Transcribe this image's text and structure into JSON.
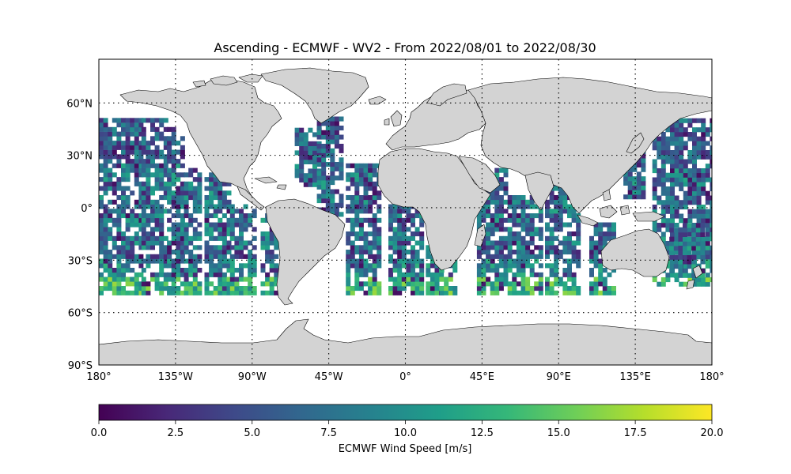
{
  "title": "Ascending - ECMWF - WV2 - From 2022/08/01 to 2022/08/30",
  "map": {
    "projection": "plate-carree",
    "lon_range": [
      -180,
      180
    ],
    "lat_range": [
      -90,
      90
    ],
    "lat_ticks": [
      {
        "value": 60,
        "label": "60°N"
      },
      {
        "value": 30,
        "label": "30°N"
      },
      {
        "value": 0,
        "label": "0°"
      },
      {
        "value": -30,
        "label": "30°S"
      },
      {
        "value": -60,
        "label": "60°S"
      },
      {
        "value": -90,
        "label": "90°S"
      }
    ],
    "lon_ticks": [
      {
        "value": -180,
        "label": "180°"
      },
      {
        "value": -135,
        "label": "135°W"
      },
      {
        "value": -90,
        "label": "90°W"
      },
      {
        "value": -45,
        "label": "45°W"
      },
      {
        "value": 0,
        "label": "0°"
      },
      {
        "value": 45,
        "label": "45°E"
      },
      {
        "value": 90,
        "label": "90°E"
      },
      {
        "value": 135,
        "label": "135°E"
      },
      {
        "value": 180,
        "label": "180°"
      }
    ],
    "gridlines": true,
    "land_color": "#d3d3d3",
    "coastline_color": "#000000"
  },
  "chart_data": {
    "type": "heatmap",
    "colormap": "viridis",
    "data_coverage_lat": [
      -50,
      50
    ],
    "swaths": [
      {
        "lon": [
          -180,
          -155
        ],
        "lat": [
          -50,
          50
        ]
      },
      {
        "lon": [
          -155,
          -142
        ],
        "lat": [
          -50,
          50
        ]
      },
      {
        "lon": [
          -140,
          -130
        ],
        "lat": [
          -50,
          45
        ]
      },
      {
        "lon": [
          -130,
          -120
        ],
        "lat": [
          -50,
          22
        ]
      },
      {
        "lon": [
          -118,
          -105
        ],
        "lat": [
          -50,
          18
        ]
      },
      {
        "lon": [
          -103,
          -88
        ],
        "lat": [
          -50,
          0
        ]
      },
      {
        "lon": [
          -85,
          -75
        ],
        "lat": [
          -50,
          -5
        ]
      },
      {
        "lon": [
          -65,
          -50
        ],
        "lat": [
          12,
          45
        ]
      },
      {
        "lon": [
          -52,
          -38
        ],
        "lat": [
          -5,
          50
        ]
      },
      {
        "lon": [
          -35,
          -15
        ],
        "lat": [
          -50,
          25
        ]
      },
      {
        "lon": [
          -10,
          10
        ],
        "lat": [
          -50,
          0
        ]
      },
      {
        "lon": [
          12,
          20
        ],
        "lat": [
          -50,
          -20
        ]
      },
      {
        "lon": [
          20,
          30
        ],
        "lat": [
          -50,
          -30
        ]
      },
      {
        "lon": [
          42,
          58
        ],
        "lat": [
          -50,
          22
        ]
      },
      {
        "lon": [
          60,
          80
        ],
        "lat": [
          -50,
          5
        ]
      },
      {
        "lon": [
          82,
          102
        ],
        "lat": [
          -50,
          20
        ]
      },
      {
        "lon": [
          108,
          122
        ],
        "lat": [
          -50,
          -10
        ]
      },
      {
        "lon": [
          128,
          140
        ],
        "lat": [
          5,
          40
        ]
      },
      {
        "lon": [
          145,
          180
        ],
        "lat": [
          -45,
          50
        ]
      },
      {
        "lon": [
          155,
          175
        ],
        "lat": [
          -40,
          -10
        ]
      }
    ],
    "high_speed_band": {
      "lat": [
        -50,
        -42
      ],
      "note_values_up_to": 17
    }
  },
  "colorbar": {
    "label": "ECMWF Wind Speed [m/s]",
    "range": [
      0,
      20
    ],
    "ticks": [
      {
        "value": 0,
        "label": "0.0"
      },
      {
        "value": 2.5,
        "label": "2.5"
      },
      {
        "value": 5,
        "label": "5.0"
      },
      {
        "value": 7.5,
        "label": "7.5"
      },
      {
        "value": 10,
        "label": "10.0"
      },
      {
        "value": 12.5,
        "label": "12.5"
      },
      {
        "value": 15,
        "label": "15.0"
      },
      {
        "value": 17.5,
        "label": "17.5"
      },
      {
        "value": 20,
        "label": "20.0"
      }
    ],
    "stops": [
      "#440154",
      "#482878",
      "#3e4a89",
      "#31688e",
      "#26828e",
      "#1f9e89",
      "#35b779",
      "#6ece58",
      "#b5de2b",
      "#fde725"
    ]
  }
}
